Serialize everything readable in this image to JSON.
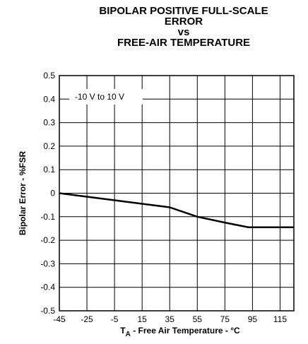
{
  "chart_data": {
    "type": "line",
    "title": [
      "BIPOLAR POSITIVE FULL-SCALE",
      "ERROR",
      "vs",
      "FREE-AIR TEMPERATURE"
    ],
    "x_label": {
      "symbol": "T",
      "subscript": "A",
      "text": " - Free Air Temperature - °C"
    },
    "y_label": "Bipolar Error - %FSR",
    "annotation": "-10 V to 10 V",
    "x": [
      -45,
      -25,
      -5,
      15,
      35,
      55,
      75,
      92,
      125
    ],
    "series": [
      {
        "name": "Bipolar Error",
        "color": "#000000",
        "values": [
          0,
          -0.015,
          -0.03,
          -0.045,
          -0.06,
          -0.1,
          -0.125,
          -0.145,
          -0.145
        ]
      }
    ],
    "xlim": [
      -45,
      125
    ],
    "xticks": [
      -45,
      -25,
      -5,
      15,
      35,
      55,
      75,
      95,
      115
    ],
    "ylim": [
      -0.5,
      0.5
    ],
    "yticks": [
      0.5,
      0.4,
      0.3,
      0.2,
      0.1,
      0,
      -0.1,
      -0.2,
      -0.3,
      -0.4,
      -0.5
    ],
    "grid": true
  }
}
